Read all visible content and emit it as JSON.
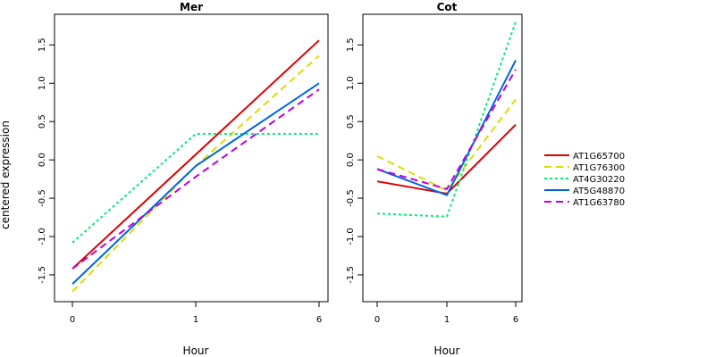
{
  "chart_data": [
    {
      "type": "line",
      "title": "Mer",
      "xlabel": "Hour",
      "ylabel": "centered expression",
      "categories": [
        "0",
        "1",
        "6"
      ],
      "ylim": [
        -1.85,
        1.9
      ],
      "yticks": [
        "-1.5",
        "-1.0",
        "-0.5",
        "0.0",
        "0.5",
        "1.0",
        "1.5"
      ],
      "series": [
        {
          "name": "AT1G65700",
          "color": "#dd0000",
          "dash": "solid",
          "values": [
            -1.42,
            0.07,
            1.56
          ]
        },
        {
          "name": "AT1G76300",
          "color": "#dddd00",
          "dash": "dashed",
          "values": [
            -1.72,
            -0.08,
            1.36
          ]
        },
        {
          "name": "AT4G30220",
          "color": "#00ee77",
          "dash": "dotted",
          "values": [
            -1.08,
            0.34,
            0.34
          ]
        },
        {
          "name": "AT5G48870",
          "color": "#0066dd",
          "dash": "solid",
          "values": [
            -1.62,
            -0.08,
            1.0
          ]
        },
        {
          "name": "AT1G63780",
          "color": "#bb00dd",
          "dash": "dashed",
          "values": [
            -1.42,
            -0.22,
            0.92
          ]
        }
      ]
    },
    {
      "type": "line",
      "title": "Cot",
      "xlabel": "Hour",
      "categories": [
        "0",
        "1",
        "6"
      ],
      "ylim": [
        -1.85,
        1.9
      ],
      "yticks": [
        "-1.5",
        "-1.0",
        "-0.5",
        "0.0",
        "0.5",
        "1.0",
        "1.5"
      ],
      "series": [
        {
          "name": "AT1G65700",
          "color": "#dd0000",
          "dash": "solid",
          "values": [
            -0.28,
            -0.44,
            0.46
          ]
        },
        {
          "name": "AT1G76300",
          "color": "#dddd00",
          "dash": "dashed",
          "values": [
            0.05,
            -0.4,
            0.79
          ]
        },
        {
          "name": "AT4G30220",
          "color": "#00ee77",
          "dash": "dotted",
          "values": [
            -0.7,
            -0.74,
            1.8
          ]
        },
        {
          "name": "AT5G48870",
          "color": "#0066dd",
          "dash": "solid",
          "values": [
            -0.12,
            -0.46,
            1.3
          ]
        },
        {
          "name": "AT1G63780",
          "color": "#bb00dd",
          "dash": "dashed",
          "values": [
            -0.12,
            -0.38,
            1.18
          ]
        }
      ]
    }
  ],
  "legend": {
    "position": "right",
    "items": [
      "AT1G65700",
      "AT1G76300",
      "AT4G30220",
      "AT5G48870",
      "AT1G63780"
    ]
  }
}
